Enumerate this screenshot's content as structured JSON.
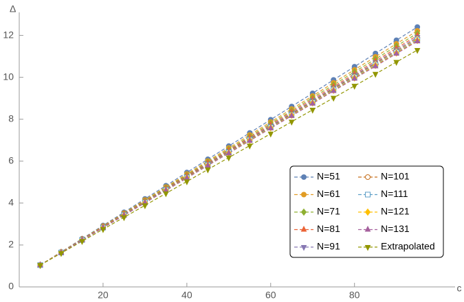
{
  "chart_data": {
    "type": "line",
    "x_label": "c",
    "y_label": "Δ",
    "x": [
      5,
      10,
      15,
      20,
      25,
      30,
      35,
      40,
      45,
      50,
      55,
      60,
      65,
      70,
      75,
      80,
      85,
      90,
      95
    ],
    "xlim": [
      0,
      104
    ],
    "ylim": [
      0,
      13.1
    ],
    "xticks": [
      20,
      40,
      60,
      80
    ],
    "yticks": [
      0,
      2,
      4,
      6,
      8,
      10,
      12
    ],
    "series": [
      {
        "name": "N=51",
        "color": "#5E81B5",
        "marker": "circle",
        "values": [
          1.04,
          1.67,
          2.3,
          2.93,
          3.56,
          4.2,
          4.83,
          5.46,
          6.09,
          6.72,
          7.35,
          7.98,
          8.61,
          9.24,
          9.88,
          10.51,
          11.14,
          11.77,
          12.4
        ]
      },
      {
        "name": "N=61",
        "color": "#E19C24",
        "marker": "circle",
        "values": [
          1.04,
          1.66,
          2.28,
          2.9,
          3.52,
          4.15,
          4.77,
          5.39,
          6.01,
          6.63,
          7.25,
          7.87,
          8.49,
          9.11,
          9.74,
          10.36,
          10.98,
          11.6,
          12.22
        ]
      },
      {
        "name": "N=71",
        "color": "#8FB032",
        "marker": "diamond",
        "values": [
          1.04,
          1.65,
          2.27,
          2.88,
          3.5,
          4.11,
          4.73,
          5.34,
          5.96,
          6.57,
          7.18,
          7.8,
          8.41,
          9.03,
          9.64,
          10.26,
          10.87,
          11.49,
          12.1
        ]
      },
      {
        "name": "N=81",
        "color": "#EB6235",
        "marker": "triangle",
        "values": [
          1.04,
          1.65,
          2.26,
          2.87,
          3.48,
          4.08,
          4.69,
          5.3,
          5.91,
          6.52,
          7.13,
          7.74,
          8.35,
          8.96,
          9.56,
          10.17,
          10.78,
          11.39,
          12.0
        ]
      },
      {
        "name": "N=91",
        "color": "#8778B3",
        "marker": "triangle-down",
        "values": [
          1.04,
          1.64,
          2.25,
          2.85,
          3.46,
          4.06,
          4.67,
          5.27,
          5.88,
          6.48,
          7.08,
          7.69,
          8.29,
          8.9,
          9.5,
          10.11,
          10.71,
          11.32,
          11.92
        ]
      },
      {
        "name": "N=101",
        "color": "#C56E1A",
        "marker": "circle-open",
        "values": [
          1.04,
          1.64,
          2.24,
          2.84,
          3.44,
          4.05,
          4.65,
          5.25,
          5.85,
          6.45,
          7.05,
          7.65,
          8.25,
          8.85,
          9.46,
          10.06,
          10.66,
          11.26,
          11.86
        ]
      },
      {
        "name": "N=111",
        "color": "#5D9EC7",
        "marker": "square-open",
        "values": [
          1.04,
          1.64,
          2.24,
          2.83,
          3.43,
          4.03,
          4.63,
          5.22,
          5.82,
          6.42,
          7.02,
          7.62,
          8.21,
          8.81,
          9.41,
          10.01,
          10.6,
          11.2,
          11.8
        ]
      },
      {
        "name": "N=121",
        "color": "#FFBF00",
        "marker": "diamond",
        "values": [
          1.04,
          1.64,
          2.23,
          2.83,
          3.42,
          4.02,
          4.61,
          5.21,
          5.8,
          6.4,
          7.0,
          7.59,
          8.19,
          8.78,
          9.38,
          9.97,
          10.57,
          11.16,
          11.76
        ]
      },
      {
        "name": "N=131",
        "color": "#A5609D",
        "marker": "triangle",
        "values": [
          1.04,
          1.63,
          2.23,
          2.82,
          3.41,
          4.01,
          4.6,
          5.19,
          5.79,
          6.38,
          6.97,
          7.57,
          8.16,
          8.75,
          9.35,
          9.94,
          10.53,
          11.13,
          11.72
        ]
      },
      {
        "name": "Extrapolated",
        "color": "#929600",
        "marker": "triangle-down",
        "values": [
          1.04,
          1.61,
          2.18,
          2.75,
          3.32,
          3.89,
          4.46,
          5.03,
          5.6,
          6.17,
          6.74,
          7.31,
          7.88,
          8.45,
          9.02,
          9.59,
          10.16,
          10.73,
          11.3
        ]
      }
    ]
  }
}
